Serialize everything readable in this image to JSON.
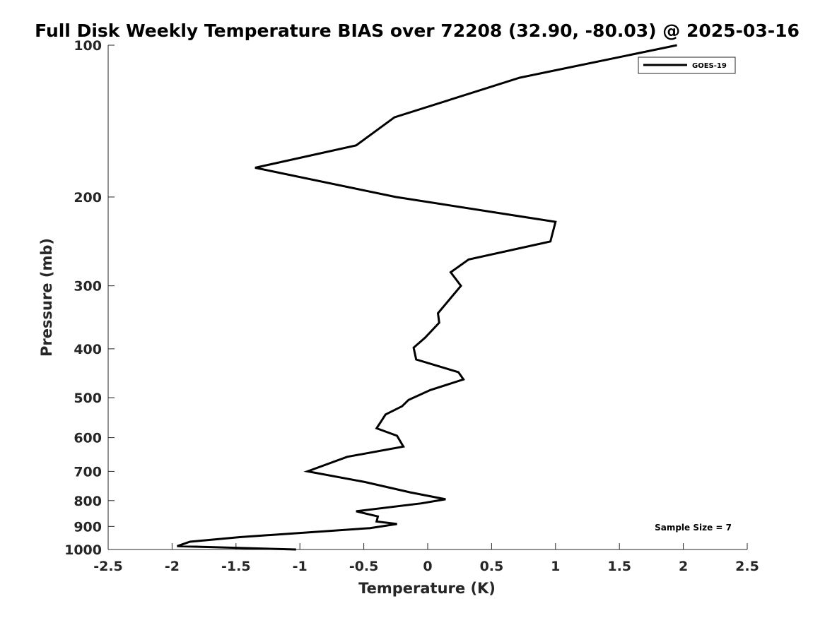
{
  "chart_data": {
    "type": "line",
    "title": "Full Disk Weekly Temperature BIAS over 72208 (32.90, -80.03) @ 2025-03-16",
    "xlabel": "Temperature (K)",
    "ylabel": "Pressure (mb)",
    "xlim": [
      -2.5,
      2.5
    ],
    "ylim": [
      100,
      1000
    ],
    "y_scale": "log",
    "y_reversed": true,
    "x_ticks": [
      "-2.5",
      "-2",
      "-1.5",
      "-1",
      "-0.5",
      "0",
      "0.5",
      "1",
      "1.5",
      "2",
      "2.5"
    ],
    "x_tick_values": [
      -2.5,
      -2,
      -1.5,
      -1,
      -0.5,
      0,
      0.5,
      1,
      1.5,
      2,
      2.5
    ],
    "y_ticks": [
      "100",
      "200",
      "300",
      "400",
      "500",
      "600",
      "700",
      "800",
      "900",
      "1000"
    ],
    "y_tick_values": [
      100,
      200,
      300,
      400,
      500,
      600,
      700,
      800,
      900,
      1000
    ],
    "grid": false,
    "legend": {
      "position": "top-right",
      "entries": [
        "GOES-19"
      ]
    },
    "annotation": "Sample Size = 7",
    "series": [
      {
        "name": "GOES-19",
        "color": "#000000",
        "points": [
          [
            1.95,
            100
          ],
          [
            0.72,
            116
          ],
          [
            -0.26,
            139
          ],
          [
            -0.56,
            158
          ],
          [
            -1.35,
            175
          ],
          [
            -0.25,
            200
          ],
          [
            1.0,
            224
          ],
          [
            0.96,
            245
          ],
          [
            0.32,
            266
          ],
          [
            0.18,
            282
          ],
          [
            0.26,
            300
          ],
          [
            0.08,
            340
          ],
          [
            0.09,
            355
          ],
          [
            -0.02,
            380
          ],
          [
            -0.11,
            398
          ],
          [
            -0.09,
            420
          ],
          [
            0.24,
            445
          ],
          [
            0.28,
            460
          ],
          [
            0.02,
            483
          ],
          [
            -0.15,
            505
          ],
          [
            -0.2,
            520
          ],
          [
            -0.33,
            540
          ],
          [
            -0.36,
            555
          ],
          [
            -0.4,
            575
          ],
          [
            -0.24,
            595
          ],
          [
            -0.19,
            625
          ],
          [
            -0.63,
            655
          ],
          [
            -0.94,
            700
          ],
          [
            -0.49,
            735
          ],
          [
            -0.14,
            770
          ],
          [
            0.14,
            795
          ],
          [
            -0.05,
            810
          ],
          [
            -0.56,
            840
          ],
          [
            -0.39,
            860
          ],
          [
            -0.4,
            880
          ],
          [
            -0.24,
            890
          ],
          [
            -0.45,
            907
          ],
          [
            -1.47,
            945
          ],
          [
            -1.86,
            965
          ],
          [
            -1.96,
            985
          ],
          [
            -1.03,
            1000
          ]
        ]
      }
    ]
  }
}
